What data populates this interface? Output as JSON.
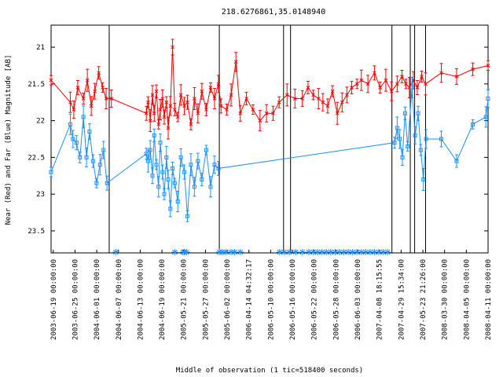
{
  "chart_data": {
    "type": "line",
    "title": "218.6276861,35.0148940",
    "xlabel": "Middle of observation (1 tic=518400 seconds)",
    "ylabel": "Near (Red) and Far (Blue) Magnitude [AB]",
    "y_inverted": true,
    "ylim": [
      23.8,
      20.7
    ],
    "yticks": [
      "21",
      "21.5",
      "22",
      "22.5",
      "23",
      "23.5"
    ],
    "grid": false,
    "legend": "none",
    "x_tick_labels": [
      "2003-06-19 00:00:00",
      "2003-06-25 00:00:00",
      "2004-06-01 00:00:00",
      "2004-06-07 00:00:00",
      "2004-06-13 00:00:00",
      "2004-06-19 00:00:00",
      "2005-05-21 00:00:00",
      "2005-05-27 00:00:00",
      "2005-06-02 00:00:00",
      "2006-04-14 04:32:17",
      "2006-05-10 00:00:00",
      "2006-05-16 00:00:00",
      "2006-05-22 00:00:00",
      "2006-05-28 00:00:00",
      "2006-06-03 00:00:00",
      "2007-04-08 18:15:55",
      "2007-04-29 15:34:00",
      "2007-05-23 21:26:00",
      "2008-03-30 00:00:00",
      "2008-04-05 00:00:00",
      "2008-04-11 00:00:00"
    ],
    "season_breaks": [
      0.133,
      0.385,
      0.532,
      0.548,
      0.78,
      0.822,
      0.832,
      0.857
    ],
    "colors": {
      "near": "#ff0000",
      "far": "#1e90ff",
      "axis": "#000000"
    },
    "series": [
      {
        "name": "Near (Red)",
        "x": [
          0.0,
          0.044,
          0.052,
          0.061,
          0.074,
          0.083,
          0.092,
          0.1,
          0.109,
          0.118,
          0.126,
          0.138,
          0.218,
          0.222,
          0.227,
          0.232,
          0.236,
          0.241,
          0.246,
          0.25,
          0.255,
          0.259,
          0.264,
          0.268,
          0.273,
          0.278,
          0.283,
          0.29,
          0.297,
          0.305,
          0.312,
          0.32,
          0.328,
          0.336,
          0.345,
          0.355,
          0.365,
          0.374,
          0.383,
          0.389,
          0.402,
          0.412,
          0.423,
          0.433,
          0.447,
          0.462,
          0.478,
          0.493,
          0.508,
          0.522,
          0.54,
          0.558,
          0.575,
          0.588,
          0.6,
          0.612,
          0.622,
          0.633,
          0.644,
          0.655,
          0.666,
          0.677,
          0.688,
          0.7,
          0.71,
          0.725,
          0.74,
          0.753,
          0.766,
          0.779,
          0.792,
          0.803,
          0.812,
          0.82,
          0.829,
          0.838,
          0.848,
          0.857,
          0.893,
          0.928,
          0.965,
          1.0
        ],
        "y": [
          21.45,
          21.75,
          21.85,
          21.55,
          21.7,
          21.45,
          21.8,
          21.6,
          21.35,
          21.55,
          21.7,
          21.7,
          21.9,
          21.75,
          22.0,
          21.65,
          21.9,
          21.6,
          22.05,
          21.85,
          21.7,
          21.95,
          21.75,
          22.1,
          21.8,
          21.0,
          21.85,
          21.95,
          21.65,
          21.8,
          21.75,
          22.05,
          21.7,
          21.9,
          21.6,
          21.85,
          21.55,
          21.7,
          21.5,
          21.8,
          21.85,
          21.65,
          21.2,
          21.9,
          21.7,
          21.85,
          22.0,
          21.9,
          21.9,
          21.75,
          21.65,
          21.7,
          21.7,
          21.55,
          21.65,
          21.7,
          21.75,
          21.8,
          21.6,
          21.9,
          21.75,
          21.65,
          21.55,
          21.5,
          21.45,
          21.5,
          21.35,
          21.55,
          21.45,
          21.6,
          21.5,
          21.4,
          21.5,
          21.55,
          21.45,
          21.55,
          21.4,
          21.5,
          21.35,
          21.4,
          21.3,
          21.25
        ]
      },
      {
        "name": "Far (Blue)",
        "x": [
          0.0,
          0.044,
          0.05,
          0.058,
          0.066,
          0.074,
          0.081,
          0.088,
          0.096,
          0.104,
          0.112,
          0.12,
          0.128,
          0.218,
          0.222,
          0.227,
          0.232,
          0.236,
          0.241,
          0.246,
          0.25,
          0.255,
          0.259,
          0.264,
          0.268,
          0.273,
          0.278,
          0.283,
          0.29,
          0.297,
          0.305,
          0.312,
          0.32,
          0.328,
          0.336,
          0.345,
          0.355,
          0.365,
          0.374,
          0.383,
          0.786,
          0.792,
          0.798,
          0.804,
          0.81,
          0.816,
          0.826,
          0.833,
          0.84,
          0.846,
          0.852,
          0.858,
          0.893,
          0.928,
          0.965,
          0.995,
          1.0
        ],
        "y": [
          22.7,
          22.05,
          22.25,
          22.3,
          22.5,
          21.95,
          22.5,
          22.15,
          22.55,
          22.85,
          22.6,
          22.4,
          22.85,
          22.45,
          22.55,
          22.4,
          22.75,
          22.2,
          22.6,
          22.9,
          22.3,
          22.7,
          23.0,
          22.5,
          22.8,
          23.2,
          22.65,
          22.85,
          23.1,
          22.5,
          22.7,
          23.3,
          22.6,
          22.9,
          22.55,
          22.8,
          22.4,
          22.9,
          22.6,
          22.65,
          22.3,
          22.1,
          22.25,
          22.5,
          21.9,
          22.35,
          21.55,
          22.2,
          21.9,
          22.4,
          22.8,
          22.25,
          22.25,
          22.55,
          22.05,
          21.95,
          21.7
        ]
      }
    ],
    "markers_x": [
      0.148,
      0.283,
      0.302,
      0.305,
      0.31,
      0.385,
      0.392,
      0.4,
      0.412,
      0.42,
      0.433,
      0.523,
      0.533,
      0.545,
      0.56,
      0.575,
      0.59,
      0.6,
      0.61,
      0.62,
      0.63,
      0.64,
      0.65,
      0.66,
      0.67,
      0.68,
      0.69,
      0.7,
      0.71,
      0.72,
      0.73,
      0.74,
      0.75,
      0.76,
      0.77
    ]
  }
}
